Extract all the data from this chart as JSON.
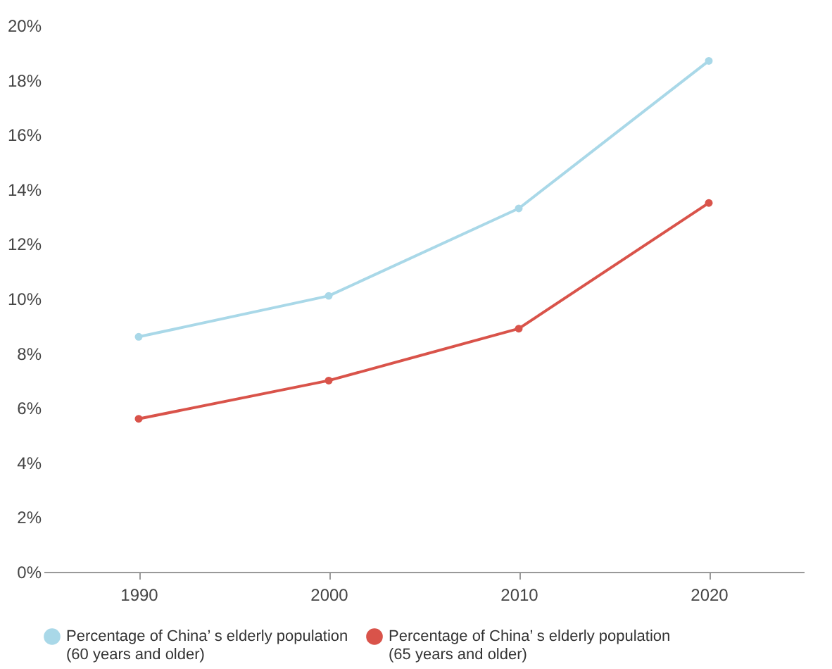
{
  "chart_data": {
    "type": "line",
    "categories": [
      "1990",
      "2000",
      "2010",
      "2020"
    ],
    "series": [
      {
        "name": "Percentage of China’ s elderly population\n(60 years and older)",
        "color": "#a9d8e8",
        "values": [
          8.6,
          10.1,
          13.3,
          18.7
        ]
      },
      {
        "name": "Percentage of China’ s elderly population\n(65 years and older)",
        "color": "#d9534a",
        "values": [
          5.6,
          7.0,
          8.9,
          13.5
        ]
      }
    ],
    "ylim": [
      0,
      20
    ],
    "yticks": [
      {
        "value": 0,
        "label": "0%"
      },
      {
        "value": 2,
        "label": "2%"
      },
      {
        "value": 4,
        "label": "4%"
      },
      {
        "value": 6,
        "label": "6%"
      },
      {
        "value": 8,
        "label": "8%"
      },
      {
        "value": 10,
        "label": "10%"
      },
      {
        "value": 12,
        "label": "12%"
      },
      {
        "value": 14,
        "label": "14%"
      },
      {
        "value": 16,
        "label": "16%"
      },
      {
        "value": 18,
        "label": "18%"
      },
      {
        "value": 20,
        "label": "20%"
      }
    ],
    "grid": false,
    "legend": "bottom",
    "marker": "circle",
    "line_style": "solid"
  }
}
